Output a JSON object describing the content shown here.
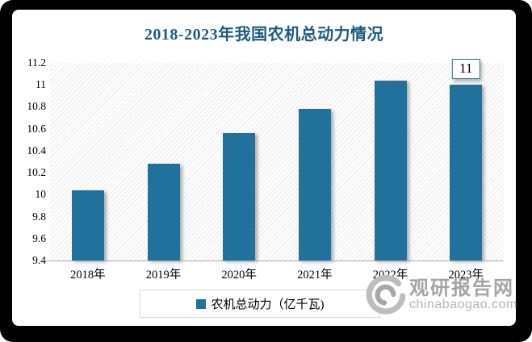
{
  "title": {
    "text": "2018-2023年我国农机总动力情况",
    "color": "#1f5b7d"
  },
  "chart_data": {
    "type": "bar",
    "title": "2018-2023年我国农机总动力情况",
    "categories": [
      "2018年",
      "2019年",
      "2020年",
      "2021年",
      "2022年",
      "2023年"
    ],
    "series": [
      {
        "name": "农机总动力（亿千瓦)",
        "values": [
          10.04,
          10.28,
          10.56,
          10.78,
          11.04,
          11
        ]
      }
    ],
    "ylim": [
      9.4,
      11.2
    ],
    "ytick_labels": [
      "11.2",
      "11",
      "10.8",
      "10.6",
      "10.4",
      "10.2",
      "10",
      "9.8",
      "9.6",
      "9.4"
    ],
    "xlabel": "",
    "ylabel": "",
    "grid": false,
    "legend_position": "bottom",
    "bar_color": "#21719d",
    "plot_background": "diagonal-hatch",
    "data_labels": [
      {
        "index": 5,
        "category": "2023年",
        "text": "11"
      }
    ]
  },
  "legend": {
    "items": [
      {
        "label": "农机总动力（亿千瓦)",
        "marker": "square-icon",
        "marker_color": "#21719d"
      }
    ]
  },
  "watermark": {
    "logo": "swirl-icon",
    "brand": "观研报告网",
    "domain": "chinabaogao.com"
  }
}
